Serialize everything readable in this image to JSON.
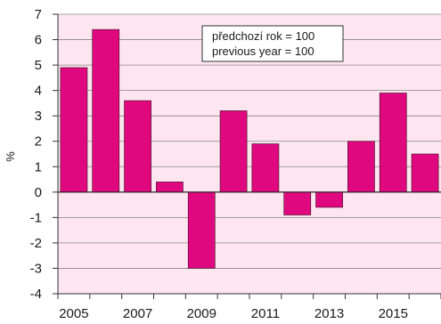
{
  "chart_data": {
    "type": "bar",
    "categories": [
      "2005",
      "2006",
      "2007",
      "2008",
      "2009",
      "2010",
      "2011",
      "2012",
      "2013",
      "2014",
      "2015",
      "2016"
    ],
    "x_tick_labels": [
      "2005",
      "2007",
      "2009",
      "2011",
      "2013",
      "2015"
    ],
    "values": [
      4.9,
      6.4,
      3.6,
      0.4,
      -3.0,
      3.2,
      1.9,
      -0.9,
      -0.6,
      2.0,
      3.9,
      1.5
    ],
    "ylabel": "%",
    "ylim": [
      -4,
      7
    ],
    "yticks": [
      -4,
      -3,
      -2,
      -1,
      0,
      1,
      2,
      3,
      4,
      5,
      6,
      7
    ],
    "grid": "horizontal",
    "legend": {
      "line1": "předchozí rok = 100",
      "line2": "previous year = 100",
      "placement": "top-center"
    },
    "colors": {
      "bar": "#e0087e",
      "plot_background": "#fde6f0",
      "grid": "#888888",
      "axis": "#333333"
    }
  }
}
